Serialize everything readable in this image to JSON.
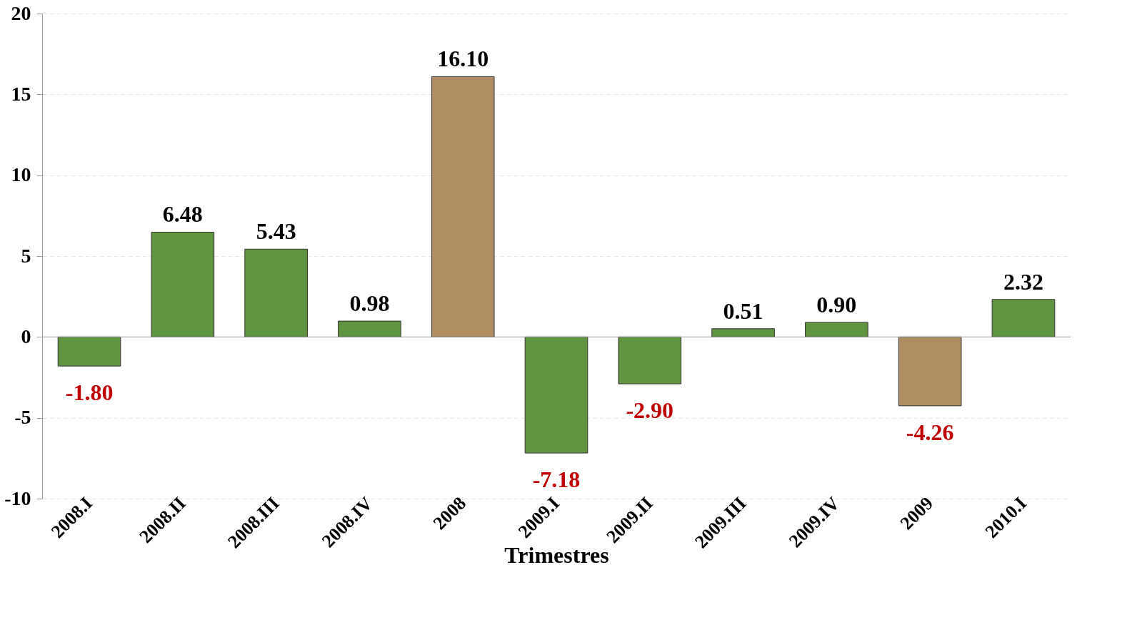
{
  "chart_data": {
    "type": "bar",
    "xlabel": "Trimestres",
    "categories": [
      "2008.I",
      "2008.II",
      "2008.III",
      "2008.IV",
      "2008",
      "2009.I",
      "2009.II",
      "2009.III",
      "2009.IV",
      "2009",
      "2010.I"
    ],
    "values": [
      -1.8,
      6.48,
      5.43,
      0.98,
      16.1,
      -7.18,
      -2.9,
      0.51,
      0.9,
      -4.26,
      2.32
    ],
    "value_labels": [
      "-1.80",
      "6.48",
      "5.43",
      "0.98",
      "16.10",
      "-7.18",
      "-2.90",
      "0.51",
      "0.90",
      "-4.26",
      "2.32"
    ],
    "colors": [
      "#5f9440",
      "#5f9440",
      "#5f9440",
      "#5f9440",
      "#b08d63",
      "#5f9440",
      "#5f9440",
      "#5f9440",
      "#5f9440",
      "#b08d63",
      "#5f9440"
    ],
    "ylim": [
      -10,
      20
    ],
    "yticks": [
      -10,
      -5,
      0,
      5,
      10,
      15,
      20
    ],
    "grid": "y"
  }
}
